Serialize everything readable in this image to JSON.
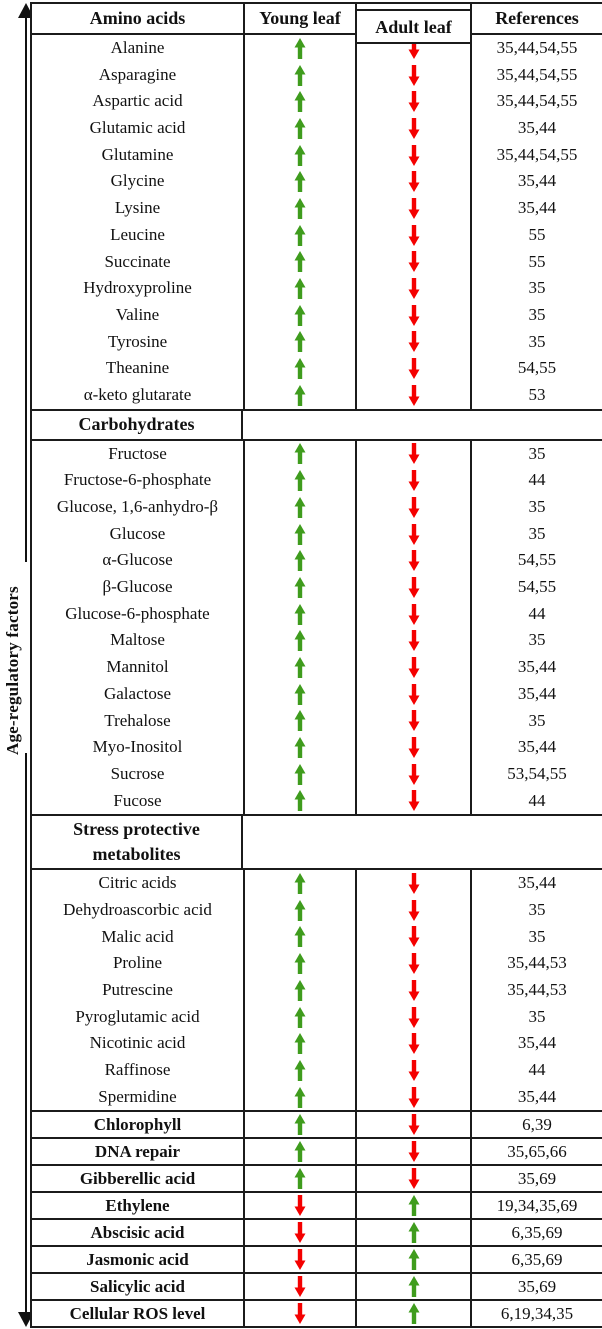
{
  "figure": {
    "left_rail": {
      "label": "Age-regulatory factors"
    },
    "colors": {
      "up": "#3f9c1d",
      "down": "#f40000",
      "border": "#1b1b1b"
    },
    "icons": {
      "up": "up-arrow-icon",
      "down": "down-arrow-icon"
    },
    "table": {
      "headers": [
        "Amino acids",
        "Young leaf",
        "Adult leaf",
        "References"
      ],
      "sections": [
        {
          "kind": "group",
          "rows": [
            {
              "label": "Alanine",
              "young": "up",
              "adult": "down",
              "refs": "35,44,54,55"
            },
            {
              "label": "Asparagine",
              "young": "up",
              "adult": "down",
              "refs": "35,44,54,55"
            },
            {
              "label": "Aspartic acid",
              "young": "up",
              "adult": "down",
              "refs": "35,44,54,55"
            },
            {
              "label": "Glutamic acid",
              "young": "up",
              "adult": "down",
              "refs": "35,44"
            },
            {
              "label": "Glutamine",
              "young": "up",
              "adult": "down",
              "refs": "35,44,54,55"
            },
            {
              "label": "Glycine",
              "young": "up",
              "adult": "down",
              "refs": "35,44"
            },
            {
              "label": "Lysine",
              "young": "up",
              "adult": "down",
              "refs": "35,44"
            },
            {
              "label": "Leucine",
              "young": "up",
              "adult": "down",
              "refs": "55"
            },
            {
              "label": "Succinate",
              "young": "up",
              "adult": "down",
              "refs": "55"
            },
            {
              "label": "Hydroxyproline",
              "young": "up",
              "adult": "down",
              "refs": "35"
            },
            {
              "label": "Valine",
              "young": "up",
              "adult": "down",
              "refs": "35"
            },
            {
              "label": "Tyrosine",
              "young": "up",
              "adult": "down",
              "refs": "35"
            },
            {
              "label": "Theanine",
              "young": "up",
              "adult": "down",
              "refs": "54,55"
            },
            {
              "label": "α-keto glutarate",
              "young": "up",
              "adult": "down",
              "refs": "53"
            }
          ]
        },
        {
          "kind": "section-header",
          "lines": [
            "Carbohydrates"
          ]
        },
        {
          "kind": "group",
          "rows": [
            {
              "label": "Fructose",
              "young": "up",
              "adult": "down",
              "refs": "35"
            },
            {
              "label": "Fructose-6-phosphate",
              "young": "up",
              "adult": "down",
              "refs": "44"
            },
            {
              "label": "Glucose, 1,6-anhydro-β",
              "young": "up",
              "adult": "down",
              "refs": "35"
            },
            {
              "label": "Glucose",
              "young": "up",
              "adult": "down",
              "refs": "35"
            },
            {
              "label": "α-Glucose",
              "young": "up",
              "adult": "down",
              "refs": "54,55"
            },
            {
              "label": "β-Glucose",
              "young": "up",
              "adult": "down",
              "refs": "54,55"
            },
            {
              "label": "Glucose-6-phosphate",
              "young": "up",
              "adult": "down",
              "refs": "44"
            },
            {
              "label": "Maltose",
              "young": "up",
              "adult": "down",
              "refs": "35"
            },
            {
              "label": "Mannitol",
              "young": "up",
              "adult": "down",
              "refs": "35,44"
            },
            {
              "label": "Galactose",
              "young": "up",
              "adult": "down",
              "refs": "35,44"
            },
            {
              "label": "Trehalose",
              "young": "up",
              "adult": "down",
              "refs": "35"
            },
            {
              "label": "Myo-Inositol",
              "young": "up",
              "adult": "down",
              "refs": "35,44"
            },
            {
              "label": "Sucrose",
              "young": "up",
              "adult": "down",
              "refs": "53,54,55"
            },
            {
              "label": "Fucose",
              "young": "up",
              "adult": "down",
              "refs": "44"
            }
          ]
        },
        {
          "kind": "section-header",
          "lines": [
            "Stress protective",
            "metabolites"
          ]
        },
        {
          "kind": "group",
          "rows": [
            {
              "label": "Citric acids",
              "young": "up",
              "adult": "down",
              "refs": "35,44"
            },
            {
              "label": "Dehydroascorbic acid",
              "young": "up",
              "adult": "down",
              "refs": "35"
            },
            {
              "label": "Malic acid",
              "young": "up",
              "adult": "down",
              "refs": "35"
            },
            {
              "label": "Proline",
              "young": "up",
              "adult": "down",
              "refs": "35,44,53"
            },
            {
              "label": "Putrescine",
              "young": "up",
              "adult": "down",
              "refs": "35,44,53"
            },
            {
              "label": "Pyroglutamic acid",
              "young": "up",
              "adult": "down",
              "refs": "35"
            },
            {
              "label": "Nicotinic acid",
              "young": "up",
              "adult": "down",
              "refs": "35,44"
            },
            {
              "label": "Raffinose",
              "young": "up",
              "adult": "down",
              "refs": "44"
            },
            {
              "label": "Spermidine",
              "young": "up",
              "adult": "down",
              "refs": "35,44"
            }
          ]
        },
        {
          "kind": "single",
          "row": {
            "label": "Chlorophyll",
            "young": "up",
            "adult": "down",
            "refs": "6,39"
          }
        },
        {
          "kind": "single",
          "row": {
            "label": "DNA repair",
            "young": "up",
            "adult": "down",
            "refs": "35,65,66"
          }
        },
        {
          "kind": "single",
          "row": {
            "label": "Gibberellic acid",
            "young": "up",
            "adult": "down",
            "refs": "35,69"
          }
        },
        {
          "kind": "single",
          "row": {
            "label": "Ethylene",
            "young": "down",
            "adult": "up",
            "refs": "19,34,35,69"
          }
        },
        {
          "kind": "single",
          "row": {
            "label": "Abscisic acid",
            "young": "down",
            "adult": "up",
            "refs": "6,35,69"
          }
        },
        {
          "kind": "single",
          "row": {
            "label": "Jasmonic acid",
            "young": "down",
            "adult": "up",
            "refs": "6,35,69"
          }
        },
        {
          "kind": "single",
          "row": {
            "label": "Salicylic acid",
            "young": "down",
            "adult": "up",
            "refs": "35,69"
          }
        },
        {
          "kind": "single",
          "row": {
            "label": "Cellular ROS level",
            "young": "down",
            "adult": "up",
            "refs": "6,19,34,35"
          }
        }
      ]
    }
  }
}
